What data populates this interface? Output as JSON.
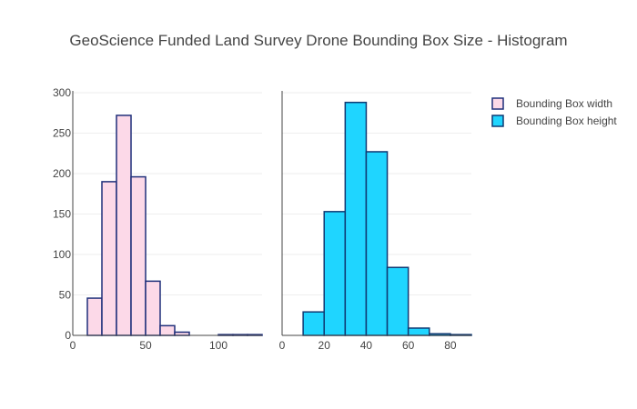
{
  "chart_data": {
    "type": "bar",
    "title": "GeoScience Funded Land Survey Drone Bounding Box Size - Histogram",
    "legend_position": "top-right",
    "grid": true,
    "panels": [
      {
        "series": {
          "name": "Bounding Box width",
          "fill": "#fcd9e8",
          "stroke": "#1f2f7a",
          "bins": [
            {
              "x0": 10,
              "x1": 20,
              "count": 46
            },
            {
              "x0": 20,
              "x1": 30,
              "count": 190
            },
            {
              "x0": 30,
              "x1": 40,
              "count": 272
            },
            {
              "x0": 40,
              "x1": 50,
              "count": 196
            },
            {
              "x0": 50,
              "x1": 60,
              "count": 67
            },
            {
              "x0": 60,
              "x1": 70,
              "count": 12
            },
            {
              "x0": 70,
              "x1": 80,
              "count": 4
            },
            {
              "x0": 100,
              "x1": 110,
              "count": 1
            },
            {
              "x0": 110,
              "x1": 120,
              "count": 1
            },
            {
              "x0": 120,
              "x1": 130,
              "count": 1
            }
          ]
        },
        "xlim": [
          0,
          130
        ],
        "xticks": [
          0,
          50,
          100
        ],
        "ylim": [
          0,
          300
        ],
        "yticks": [
          0,
          50,
          100,
          150,
          200,
          250,
          300
        ],
        "show_yticks": true
      },
      {
        "series": {
          "name": "Bounding Box height",
          "fill": "#1fd5ff",
          "stroke": "#0f3a73",
          "bins": [
            {
              "x0": 10,
              "x1": 20,
              "count": 29
            },
            {
              "x0": 20,
              "x1": 30,
              "count": 153
            },
            {
              "x0": 30,
              "x1": 40,
              "count": 288
            },
            {
              "x0": 40,
              "x1": 50,
              "count": 227
            },
            {
              "x0": 50,
              "x1": 60,
              "count": 84
            },
            {
              "x0": 60,
              "x1": 70,
              "count": 9
            },
            {
              "x0": 70,
              "x1": 80,
              "count": 2
            },
            {
              "x0": 80,
              "x1": 90,
              "count": 1
            }
          ]
        },
        "xlim": [
          0,
          90
        ],
        "xticks": [
          0,
          20,
          40,
          60,
          80
        ],
        "ylim": [
          0,
          300
        ],
        "yticks": [
          0,
          50,
          100,
          150,
          200,
          250,
          300
        ],
        "show_yticks": false
      }
    ]
  }
}
